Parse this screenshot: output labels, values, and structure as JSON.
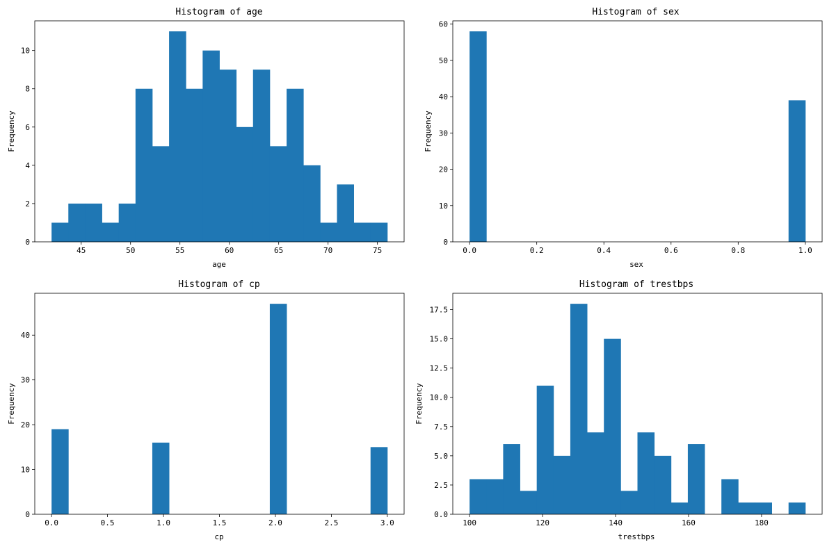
{
  "chart_data": [
    {
      "type": "histogram",
      "title": "Histogram of age",
      "xlabel": "age",
      "ylabel": "Frequency",
      "xlim": [
        40.3,
        77.7
      ],
      "ylim": [
        0,
        11.55
      ],
      "bin_start": 42,
      "bin_width": 1.7,
      "values": [
        1,
        2,
        2,
        1,
        2,
        8,
        5,
        11,
        8,
        10,
        9,
        6,
        9,
        5,
        8,
        4,
        1,
        3,
        1,
        1
      ],
      "xticks": [
        45,
        50,
        55,
        60,
        65,
        70,
        75
      ],
      "xtick_labels": [
        "45",
        "50",
        "55",
        "60",
        "65",
        "70",
        "75"
      ],
      "yticks": [
        0,
        2,
        4,
        6,
        8,
        10
      ],
      "ytick_labels": [
        "0",
        "2",
        "4",
        "6",
        "8",
        "10"
      ],
      "color": "#1f77b4"
    },
    {
      "type": "histogram",
      "title": "Histogram of sex",
      "xlabel": "sex",
      "ylabel": "Frequency",
      "xlim": [
        -0.05,
        1.05
      ],
      "ylim": [
        0,
        60.9
      ],
      "bin_start": 0,
      "bin_width": 0.05,
      "values": [
        58,
        0,
        0,
        0,
        0,
        0,
        0,
        0,
        0,
        0,
        0,
        0,
        0,
        0,
        0,
        0,
        0,
        0,
        0,
        39
      ],
      "xticks": [
        0,
        0.2,
        0.4,
        0.6,
        0.8,
        1.0
      ],
      "xtick_labels": [
        "0.0",
        "0.2",
        "0.4",
        "0.6",
        "0.8",
        "1.0"
      ],
      "yticks": [
        0,
        10,
        20,
        30,
        40,
        50,
        60
      ],
      "ytick_labels": [
        "0",
        "10",
        "20",
        "30",
        "40",
        "50",
        "60"
      ],
      "color": "#1f77b4"
    },
    {
      "type": "histogram",
      "title": "Histogram of cp",
      "xlabel": "cp",
      "ylabel": "Frequency",
      "xlim": [
        -0.15,
        3.15
      ],
      "ylim": [
        0,
        49.35
      ],
      "bin_start": 0,
      "bin_width": 0.15,
      "values": [
        19,
        0,
        0,
        0,
        0,
        0,
        16,
        0,
        0,
        0,
        0,
        0,
        0,
        47,
        0,
        0,
        0,
        0,
        0,
        15
      ],
      "xticks": [
        0,
        0.5,
        1.0,
        1.5,
        2.0,
        2.5,
        3.0
      ],
      "xtick_labels": [
        "0.0",
        "0.5",
        "1.0",
        "1.5",
        "2.0",
        "2.5",
        "3.0"
      ],
      "yticks": [
        0,
        10,
        20,
        30,
        40
      ],
      "ytick_labels": [
        "0",
        "10",
        "20",
        "30",
        "40"
      ],
      "color": "#1f77b4"
    },
    {
      "type": "histogram",
      "title": "Histogram of trestbps",
      "xlabel": "trestbps",
      "ylabel": "Frequency",
      "xlim": [
        95.4,
        196.6
      ],
      "ylim": [
        0,
        18.9
      ],
      "bin_start": 100,
      "bin_width": 4.6,
      "values": [
        3,
        3,
        6,
        2,
        11,
        5,
        18,
        7,
        15,
        2,
        7,
        5,
        1,
        6,
        0,
        3,
        1,
        1,
        0,
        1
      ],
      "xticks": [
        100,
        120,
        140,
        160,
        180
      ],
      "xtick_labels": [
        "100",
        "120",
        "140",
        "160",
        "180"
      ],
      "yticks": [
        0,
        2.5,
        5,
        7.5,
        10,
        12.5,
        15,
        17.5
      ],
      "ytick_labels": [
        "0.0",
        "2.5",
        "5.0",
        "7.5",
        "10.0",
        "12.5",
        "15.0",
        "17.5"
      ],
      "color": "#1f77b4"
    }
  ]
}
